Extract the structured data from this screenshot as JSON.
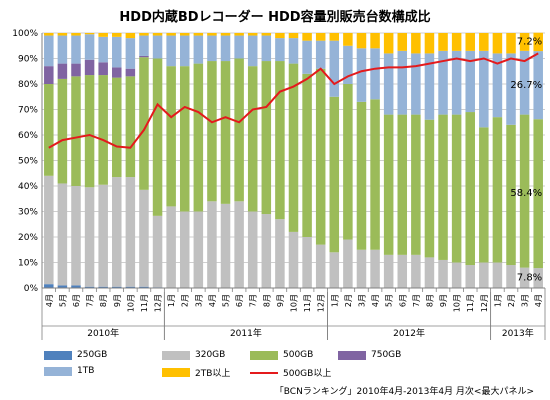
{
  "chart_data": {
    "type": "bar",
    "stacked": true,
    "percent": true,
    "title": "HDD内蔵BDレコーダー HDD容量別販売台数構成比",
    "categories": [
      "4月",
      "5月",
      "6月",
      "7月",
      "8月",
      "9月",
      "10月",
      "11月",
      "12月",
      "1月",
      "2月",
      "3月",
      "4月",
      "5月",
      "6月",
      "7月",
      "8月",
      "9月",
      "10月",
      "11月",
      "12月",
      "1月",
      "2月",
      "3月",
      "4月",
      "5月",
      "6月",
      "7月",
      "8月",
      "9月",
      "10月",
      "11月",
      "12月",
      "1月",
      "2月",
      "3月",
      "4月"
    ],
    "year_groups": [
      {
        "label": "2010年",
        "start": 0,
        "end": 8
      },
      {
        "label": "2011年",
        "start": 9,
        "end": 20
      },
      {
        "label": "2012年",
        "start": 21,
        "end": 32
      },
      {
        "label": "2013年",
        "start": 33,
        "end": 36
      }
    ],
    "ylim": [
      0,
      100
    ],
    "yticks": [
      "0%",
      "10%",
      "20%",
      "30%",
      "40%",
      "50%",
      "60%",
      "70%",
      "80%",
      "90%",
      "100%"
    ],
    "grid": true,
    "legend_position": "bottom",
    "series": [
      {
        "name": "250GB",
        "color": "#4f81bd",
        "values": [
          1.5,
          1,
          1,
          0.5,
          0.5,
          0.5,
          0.5,
          0.5,
          0.3,
          0,
          0,
          0,
          0,
          0,
          0,
          0,
          0,
          0,
          0,
          0,
          0,
          0,
          0,
          0,
          0,
          0,
          0,
          0,
          0,
          0,
          0,
          0,
          0,
          0,
          0,
          0,
          0
        ]
      },
      {
        "name": "320GB",
        "color": "#c0c0c0",
        "values": [
          42.5,
          40,
          39,
          39,
          40,
          43,
          43,
          38,
          28,
          32,
          30,
          30,
          34,
          33,
          34,
          30,
          29,
          27,
          22,
          20,
          17,
          14,
          19,
          15,
          15,
          13,
          13,
          13,
          12,
          11,
          10,
          9,
          10,
          10,
          9,
          8,
          7.8
        ]
      },
      {
        "name": "500GB",
        "color": "#9bbb59",
        "values": [
          36,
          41,
          43,
          44,
          43,
          39,
          39.5,
          52,
          61.7,
          55,
          57,
          58,
          55,
          56,
          56,
          57,
          60,
          62,
          66,
          64,
          69,
          61,
          61,
          58,
          59,
          55,
          55,
          55,
          54,
          57,
          58,
          60,
          53,
          57,
          55,
          60,
          58.4
        ]
      },
      {
        "name": "750GB",
        "color": "#8064a2",
        "values": [
          7,
          6,
          5,
          6,
          5,
          4,
          3,
          0.5,
          0,
          0,
          0,
          0,
          0,
          0,
          0,
          0,
          0,
          0,
          0,
          0,
          0,
          0,
          0,
          0,
          0,
          0,
          0,
          0,
          0,
          0,
          0,
          0,
          0,
          0,
          0,
          0,
          0
        ]
      },
      {
        "name": "1TB",
        "color": "#95b3d7",
        "values": [
          12,
          11,
          11,
          10,
          10,
          12,
          12,
          8,
          9,
          12,
          12,
          11,
          10,
          10,
          9,
          12,
          10,
          9,
          10,
          13,
          11,
          22,
          15,
          21,
          20,
          24,
          25,
          24,
          26,
          25,
          25,
          24,
          30,
          25,
          28,
          25,
          26.7
        ]
      },
      {
        "name": "2TB以上",
        "color": "#ffc000",
        "values": [
          1,
          1,
          1,
          0.5,
          1.5,
          1.5,
          2,
          1,
          1,
          1,
          1,
          1,
          1,
          1,
          1,
          1,
          1,
          2,
          2,
          3,
          3,
          3,
          5,
          6,
          6,
          8,
          7,
          8,
          8,
          7,
          7,
          7,
          7,
          8,
          8,
          7,
          7.2
        ]
      },
      {
        "name": "500GB以上",
        "color": "#e41a1c",
        "type": "line",
        "values": [
          55,
          58,
          59,
          60,
          58,
          55.5,
          55,
          62,
          72,
          67,
          71,
          69,
          65,
          67,
          65,
          70,
          71,
          77,
          79,
          82,
          86,
          80,
          83,
          85,
          86,
          86.5,
          86.5,
          87,
          88,
          89,
          90,
          89,
          90,
          88,
          90,
          89,
          92
        ]
      }
    ],
    "annotations": [
      {
        "text": "7.2%",
        "series": "2TB以上"
      },
      {
        "text": "26.7%",
        "series": "1TB"
      },
      {
        "text": "58.4%",
        "series": "500GB"
      },
      {
        "text": "7.8%",
        "series": "320GB"
      }
    ]
  },
  "legend_items": [
    "250GB",
    "320GB",
    "500GB",
    "750GB",
    "1TB",
    "2TB以上",
    "500GB以上"
  ],
  "source_note": "「BCNランキング」2010年4月-2013年4月 月次<最大パネル>"
}
